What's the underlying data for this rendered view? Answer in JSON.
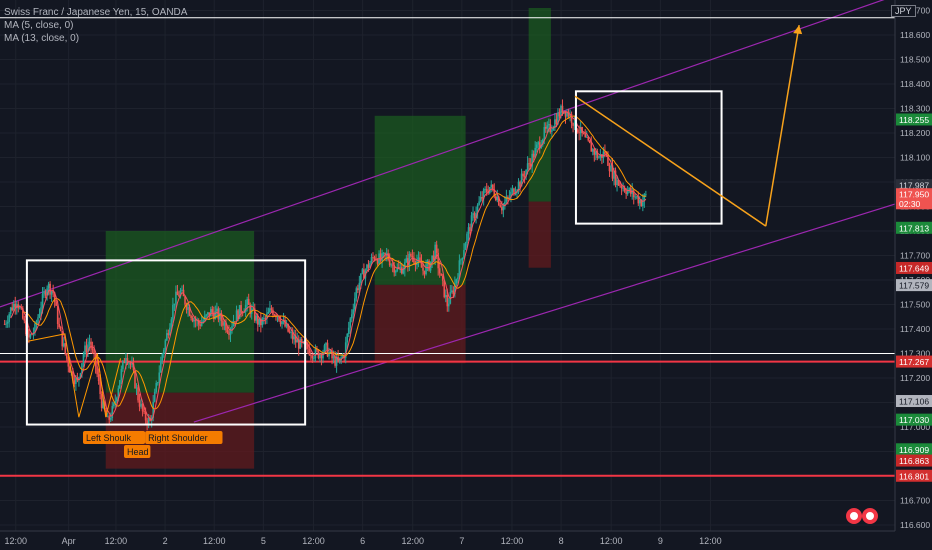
{
  "legend": {
    "title": "Swiss Franc / Japanese Yen, 15, OANDA",
    "ma5": "MA (5, close, 0)",
    "ma13": "MA (13, close, 0)"
  },
  "currency": "JPY",
  "colors": {
    "background": "#131722",
    "grid": "#1e222d",
    "axis_text": "#b2b5be",
    "candle_up": "#26a69a",
    "candle_down": "#ef5350",
    "ma5": "#f7525f",
    "ma13": "#ff9800",
    "channel": "#9c27b0",
    "support": "#f23645",
    "box": "#ffffff",
    "projection": "#f7a21b",
    "profit_zone": "#1b5e20",
    "loss_zone": "#5c1a1e",
    "label_orange": "#f57c00"
  },
  "annotations": {
    "left_shoulder": "Left Shoulk",
    "right_shoulder": "Right Shoulder",
    "head": "Head"
  },
  "chart_data": {
    "type": "candlestick",
    "symbol": "CHFJPY",
    "timeframe": "15",
    "y_axis": {
      "range": [
        116.6,
        118.71
      ],
      "ticks": [
        "118.700",
        "118.600",
        "118.500",
        "118.400",
        "118.300",
        "118.200",
        "118.100",
        "118.000",
        "117.900",
        "117.800",
        "117.700",
        "117.600",
        "117.500",
        "117.400",
        "117.300",
        "117.200",
        "117.100",
        "117.000",
        "116.900",
        "116.800",
        "116.700",
        "116.600"
      ],
      "tick_values": [
        118.7,
        118.6,
        118.5,
        118.4,
        118.3,
        118.2,
        118.1,
        118.0,
        117.9,
        117.8,
        117.7,
        117.6,
        117.5,
        117.4,
        117.3,
        117.2,
        117.1,
        117.0,
        116.9,
        116.8,
        116.7,
        116.6
      ]
    },
    "x_axis": {
      "range": [
        0,
        9.65
      ],
      "ticks": [
        "12:00",
        "Apr",
        "12:00",
        "2",
        "12:00",
        "5",
        "12:00",
        "6",
        "12:00",
        "7",
        "12:00",
        "8",
        "12:00",
        "9",
        "12:00"
      ],
      "tick_values": [
        0.17,
        0.74,
        1.25,
        1.78,
        2.31,
        2.84,
        3.38,
        3.91,
        4.45,
        4.98,
        5.52,
        6.05,
        6.59,
        7.12,
        7.66
      ]
    },
    "price_labels": [
      {
        "text": "118.255",
        "value": 118.255,
        "bg": "#1b8a3a",
        "fg": "#ffffff"
      },
      {
        "text": "117.987",
        "value": 117.987,
        "bg": "#2a2e39",
        "fg": "#d1d4dc"
      },
      {
        "text": "117.950",
        "value": 117.95,
        "bg": "#ef5350",
        "fg": "#ffffff"
      },
      {
        "text": "02:30",
        "value": 117.913,
        "bg": "#ef5350",
        "fg": "#ffffff"
      },
      {
        "text": "117.813",
        "value": 117.813,
        "bg": "#1b8a3a",
        "fg": "#ffffff"
      },
      {
        "text": "117.649",
        "value": 117.649,
        "bg": "#c62828",
        "fg": "#ffffff"
      },
      {
        "text": "117.579",
        "value": 117.579,
        "bg": "#b2b5be",
        "fg": "#131722"
      },
      {
        "text": "117.267",
        "value": 117.267,
        "bg": "#d32f2f",
        "fg": "#ffffff"
      },
      {
        "text": "117.106",
        "value": 117.106,
        "bg": "#b2b5be",
        "fg": "#131722"
      },
      {
        "text": "117.030",
        "value": 117.03,
        "bg": "#1b8a3a",
        "fg": "#ffffff"
      },
      {
        "text": "116.909",
        "value": 116.909,
        "bg": "#1b8a3a",
        "fg": "#ffffff"
      },
      {
        "text": "116.863",
        "value": 116.863,
        "bg": "#c62828",
        "fg": "#ffffff"
      },
      {
        "text": "116.801",
        "value": 116.801,
        "bg": "#d32f2f",
        "fg": "#ffffff"
      }
    ],
    "horizontal_lines": [
      {
        "value": 118.67,
        "color": "#ffffff"
      },
      {
        "value": 117.3,
        "color": "#ffffff"
      },
      {
        "value": 117.267,
        "color": "#f23645"
      },
      {
        "value": 116.801,
        "color": "#f23645"
      }
    ],
    "rectangles": [
      {
        "t1": 0.29,
        "t2": 3.29,
        "p1": 117.68,
        "p2": 117.01,
        "color": "#ffffff"
      },
      {
        "t1": 6.21,
        "t2": 7.78,
        "p1": 118.37,
        "p2": 117.83,
        "color": "#ffffff"
      }
    ],
    "positions": [
      {
        "t1": 1.14,
        "t2": 2.74,
        "entry": 117.14,
        "target": 117.8,
        "stop": 116.83
      },
      {
        "t1": 4.04,
        "t2": 5.02,
        "entry": 117.58,
        "target": 118.27,
        "stop": 117.26
      },
      {
        "t1": 5.7,
        "t2": 5.94,
        "entry": 117.92,
        "target": 118.71,
        "stop": 117.65
      }
    ],
    "channel_lines": [
      {
        "t1": 0.0,
        "p1": 117.49,
        "t2": 9.65,
        "p2": 118.76
      },
      {
        "t1": 2.09,
        "p1": 117.02,
        "t2": 9.65,
        "p2": 117.91
      }
    ],
    "projection": [
      {
        "t": 6.2,
        "p": 118.35
      },
      {
        "t": 6.1,
        "p": 117.82
      },
      {
        "t": 6.46,
        "p": 118.64
      }
    ],
    "shoulder_path": [
      {
        "t": 0.3,
        "p": 117.35
      },
      {
        "t": 0.7,
        "p": 117.38
      },
      {
        "t": 0.85,
        "p": 117.04
      },
      {
        "t": 1.05,
        "p": 117.3
      },
      {
        "t": 1.14,
        "p": 117.04
      },
      {
        "t": 1.3,
        "p": 117.28
      }
    ],
    "series_close": [
      117.42,
      117.48,
      117.52,
      117.44,
      117.36,
      117.4,
      117.5,
      117.58,
      117.55,
      117.4,
      117.3,
      117.22,
      117.18,
      117.3,
      117.35,
      117.25,
      117.1,
      117.02,
      117.08,
      117.2,
      117.3,
      117.24,
      117.12,
      117.04,
      117.02,
      117.16,
      117.3,
      117.4,
      117.52,
      117.55,
      117.5,
      117.45,
      117.42,
      117.44,
      117.47,
      117.46,
      117.43,
      117.4,
      117.45,
      117.48,
      117.5,
      117.46,
      117.42,
      117.44,
      117.48,
      117.46,
      117.42,
      117.38,
      117.35,
      117.33,
      117.32,
      117.3,
      117.3,
      117.32,
      117.28,
      117.26,
      117.3,
      117.44,
      117.56,
      117.62,
      117.66,
      117.7,
      117.68,
      117.7,
      117.66,
      117.64,
      117.66,
      117.7,
      117.68,
      117.64,
      117.66,
      117.72,
      117.6,
      117.5,
      117.56,
      117.66,
      117.76,
      117.84,
      117.9,
      117.95,
      117.98,
      117.95,
      117.9,
      117.93,
      117.97,
      118.0,
      118.05,
      118.1,
      118.15,
      118.2,
      118.22,
      118.26,
      118.3,
      118.28,
      118.24,
      118.2,
      118.16,
      118.13,
      118.1,
      118.12,
      118.05,
      118.0,
      117.98,
      117.96,
      117.94,
      117.92,
      117.95
    ]
  }
}
